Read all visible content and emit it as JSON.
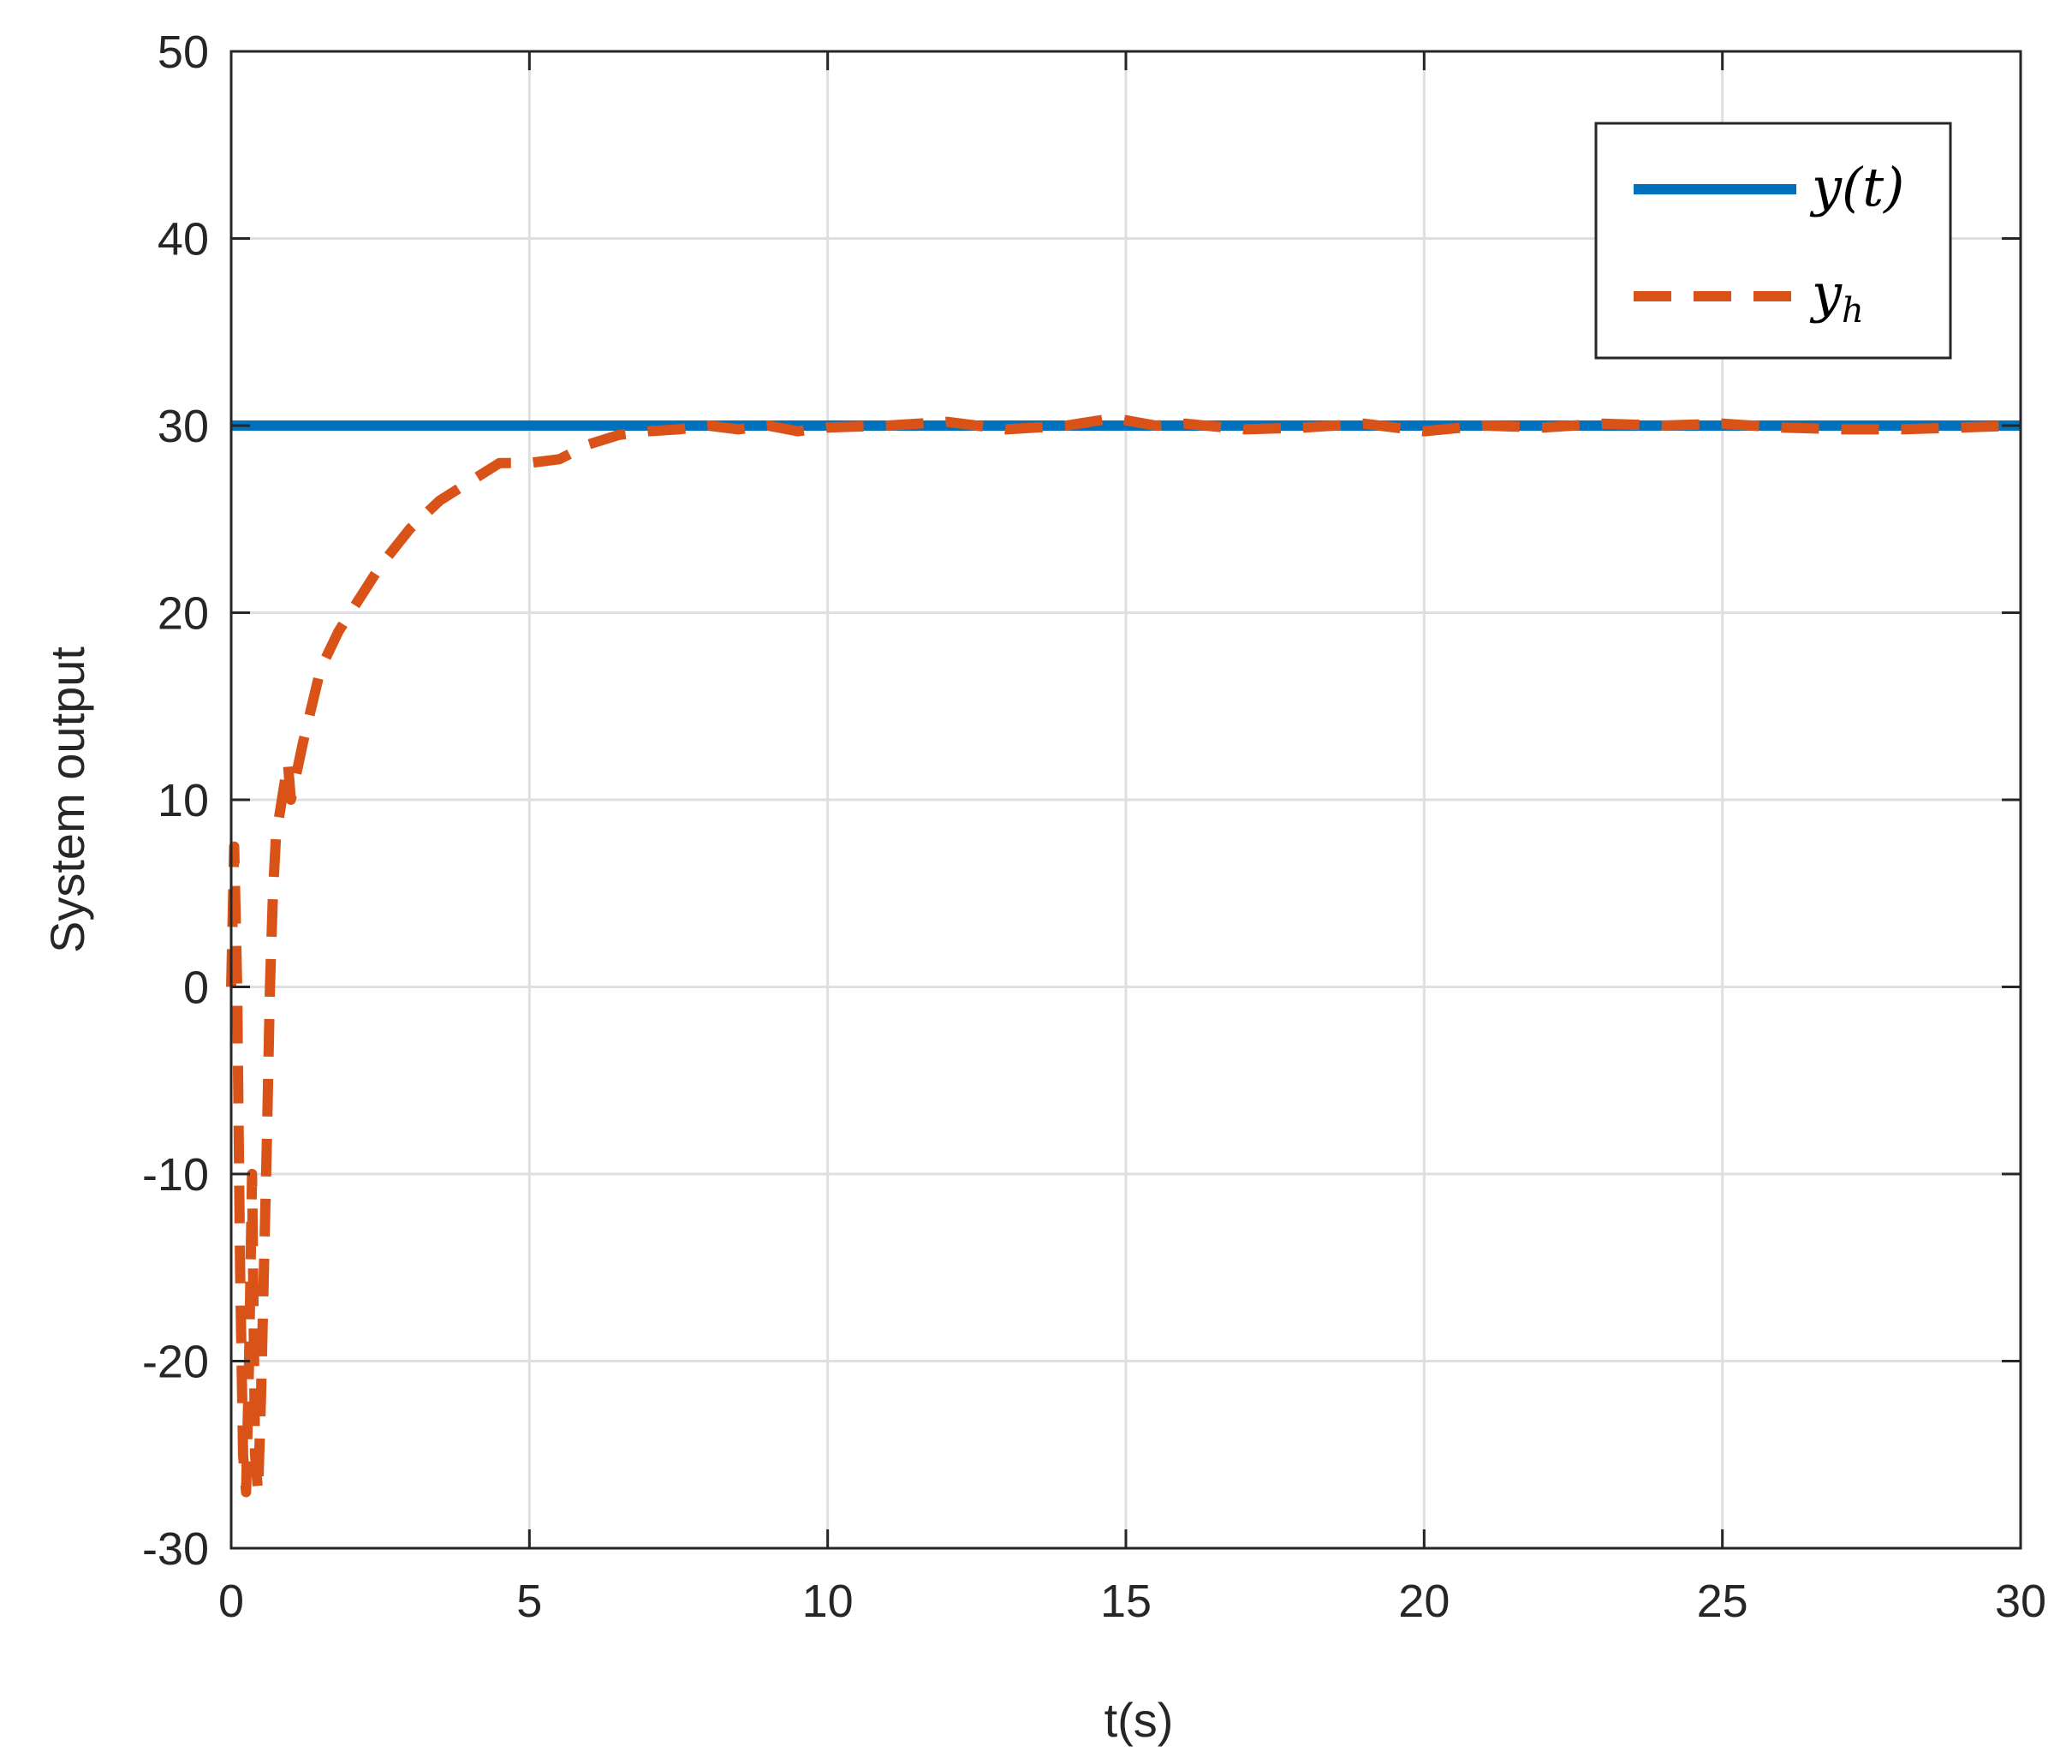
{
  "chart_data": {
    "type": "line",
    "title": "",
    "xlabel": "t(s)",
    "ylabel": "System output",
    "xlim": [
      0,
      30
    ],
    "ylim": [
      -30,
      50
    ],
    "xticks": [
      0,
      5,
      10,
      15,
      20,
      25,
      30
    ],
    "yticks": [
      -30,
      -20,
      -10,
      0,
      10,
      20,
      30,
      40,
      50
    ],
    "xtick_labels": [
      "0",
      "5",
      "10",
      "15",
      "20",
      "25",
      "30"
    ],
    "ytick_labels": [
      "-30",
      "-20",
      "-10",
      "0",
      "10",
      "20",
      "30",
      "40",
      "50"
    ],
    "grid": true,
    "legend_position": "top-right",
    "series": [
      {
        "name": "y(t)",
        "name_main": "y(t)",
        "name_sub": "",
        "color": "#0072BD",
        "style": "solid",
        "x": [
          0,
          30
        ],
        "y": [
          30,
          30
        ]
      },
      {
        "name": "y_h",
        "name_main": "y",
        "name_sub": "h",
        "color": "#D95319",
        "style": "dashed",
        "x": [
          0,
          0.05,
          0.1,
          0.15,
          0.2,
          0.25,
          0.3,
          0.35,
          0.4,
          0.45,
          0.5,
          0.55,
          0.6,
          0.65,
          0.7,
          0.75,
          0.8,
          0.85,
          0.9,
          0.95,
          1.0,
          1.2,
          1.5,
          1.8,
          2.0,
          2.5,
          3.0,
          3.5,
          4.0,
          4.5,
          5.0,
          5.5,
          6.0,
          6.5,
          7.0,
          7.5,
          8.0,
          8.5,
          9.0,
          9.5,
          10.0,
          11.0,
          12.0,
          13.0,
          14.0,
          14.8,
          15.5,
          16.0,
          17.0,
          18.0,
          19.0,
          20.0,
          21.0,
          22.0,
          23.0,
          24.0,
          25.0,
          26.0,
          27.0,
          28.0,
          29.0,
          30.0
        ],
        "y": [
          0,
          7.5,
          0,
          -15,
          -25,
          -27,
          -20,
          -10,
          -25,
          -27,
          -22,
          -15,
          -8,
          0,
          5,
          8,
          9,
          10,
          11,
          12,
          10,
          13,
          17,
          19,
          20,
          22.5,
          24.5,
          26,
          27,
          28,
          28,
          28.2,
          29,
          29.5,
          29.7,
          29.8,
          30,
          29.8,
          30,
          29.7,
          29.9,
          30,
          30.2,
          29.8,
          30,
          30.4,
          30,
          30.1,
          29.8,
          29.9,
          30.1,
          29.7,
          30,
          29.9,
          30.1,
          30,
          30.1,
          29.9,
          29.8,
          29.8,
          29.9,
          30
        ]
      }
    ]
  }
}
